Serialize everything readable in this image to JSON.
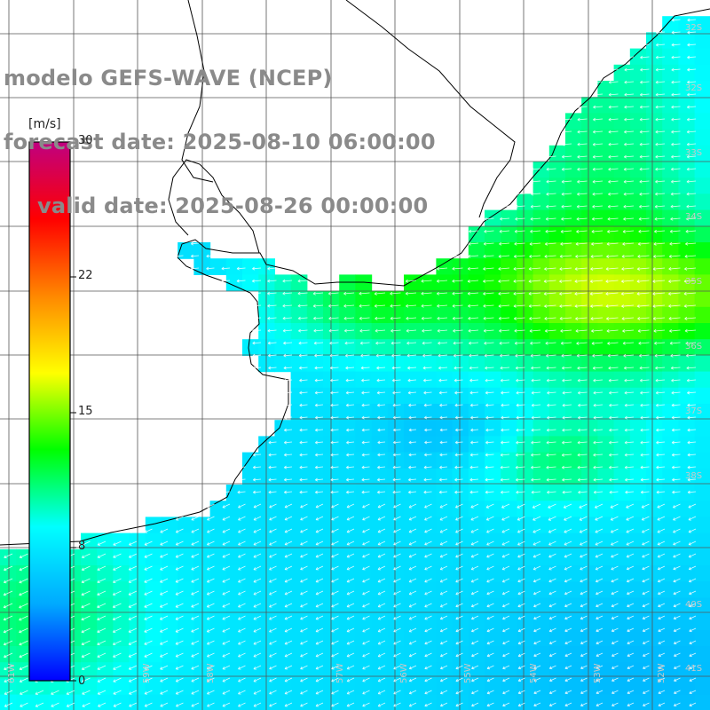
{
  "header": {
    "line1": "modelo GEFS-WAVE (NCEP)",
    "line2": "forecast date: 2025-08-10 06:00:00",
    "line3": "valid date: 2025-08-26 00:00:00"
  },
  "colorbar": {
    "unit": "[m/s]",
    "ticks": [
      "30",
      "22",
      "15",
      "8",
      "0"
    ],
    "min": 0,
    "max": 30,
    "colors": [
      "#0000ff",
      "#00aaff",
      "#00ffff",
      "#00ff00",
      "#ffff00",
      "#ff8800",
      "#ff0000",
      "#c00080"
    ]
  },
  "latitude_labels": [
    "32S",
    "33S",
    "34S",
    "35S",
    "36S",
    "37S",
    "38S",
    "40S",
    "41S"
  ],
  "longitude_labels": [
    "61W",
    "60W",
    "59W",
    "58W",
    "57W",
    "56W",
    "55W",
    "54W",
    "53W",
    "52W"
  ],
  "field": {
    "variable": "wind speed",
    "description_in_units": "m/s",
    "north_coast_speed": 13,
    "open_ocean_speed": 7,
    "southeast_speed": 5,
    "arrow_color": "#ffffff"
  }
}
